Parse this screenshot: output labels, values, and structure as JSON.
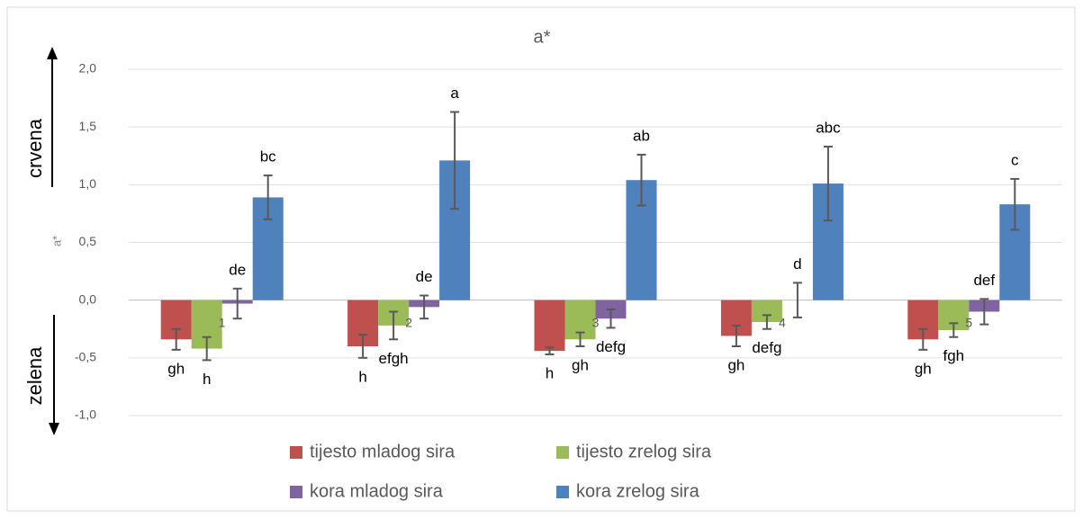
{
  "chart_data": {
    "type": "bar",
    "title": "a*",
    "y_label": "a*",
    "annotations": {
      "up": "crvena",
      "down": "zelena"
    },
    "categories": [
      "1",
      "2",
      "3",
      "4",
      "5"
    ],
    "series": [
      {
        "name": "tijesto mladog sira",
        "color": "#c0504d",
        "values": [
          -0.34,
          -0.4,
          -0.44,
          -0.31,
          -0.34
        ],
        "errors": [
          0.09,
          0.1,
          0.03,
          0.09,
          0.09
        ],
        "letters": [
          "gh",
          "h",
          "h",
          "gh",
          "gh"
        ]
      },
      {
        "name": "tijesto zrelog sira",
        "color": "#9bbb59",
        "values": [
          -0.42,
          -0.22,
          -0.34,
          -0.19,
          -0.26
        ],
        "errors": [
          0.1,
          0.12,
          0.06,
          0.06,
          0.06
        ],
        "letters": [
          "h",
          "efgh",
          "gh",
          "defg",
          "fgh"
        ]
      },
      {
        "name": "kora mladog sira",
        "color": "#8064a2",
        "values": [
          -0.03,
          -0.06,
          -0.16,
          0.0,
          -0.1
        ],
        "errors": [
          0.13,
          0.1,
          0.08,
          0.15,
          0.11
        ],
        "letters": [
          "de",
          "de",
          "defg",
          "d",
          "def"
        ]
      },
      {
        "name": "kora zrelog sira",
        "color": "#4f81bd",
        "values": [
          0.89,
          1.21,
          1.04,
          1.01,
          0.83
        ],
        "errors": [
          0.19,
          0.42,
          0.22,
          0.32,
          0.22
        ],
        "letters": [
          "bc",
          "a",
          "ab",
          "abc",
          "c"
        ]
      }
    ],
    "ylim": [
      -1,
      2
    ],
    "yticks": [
      {
        "value": -1,
        "label": "-1,0"
      },
      {
        "value": -0.5,
        "label": "-0,5"
      },
      {
        "value": 0,
        "label": "0,0"
      },
      {
        "value": 0.5,
        "label": "0,5"
      },
      {
        "value": 1,
        "label": "1,0"
      },
      {
        "value": 1.5,
        "label": "1,5"
      },
      {
        "value": 2,
        "label": "2,0"
      }
    ],
    "grid": true
  }
}
